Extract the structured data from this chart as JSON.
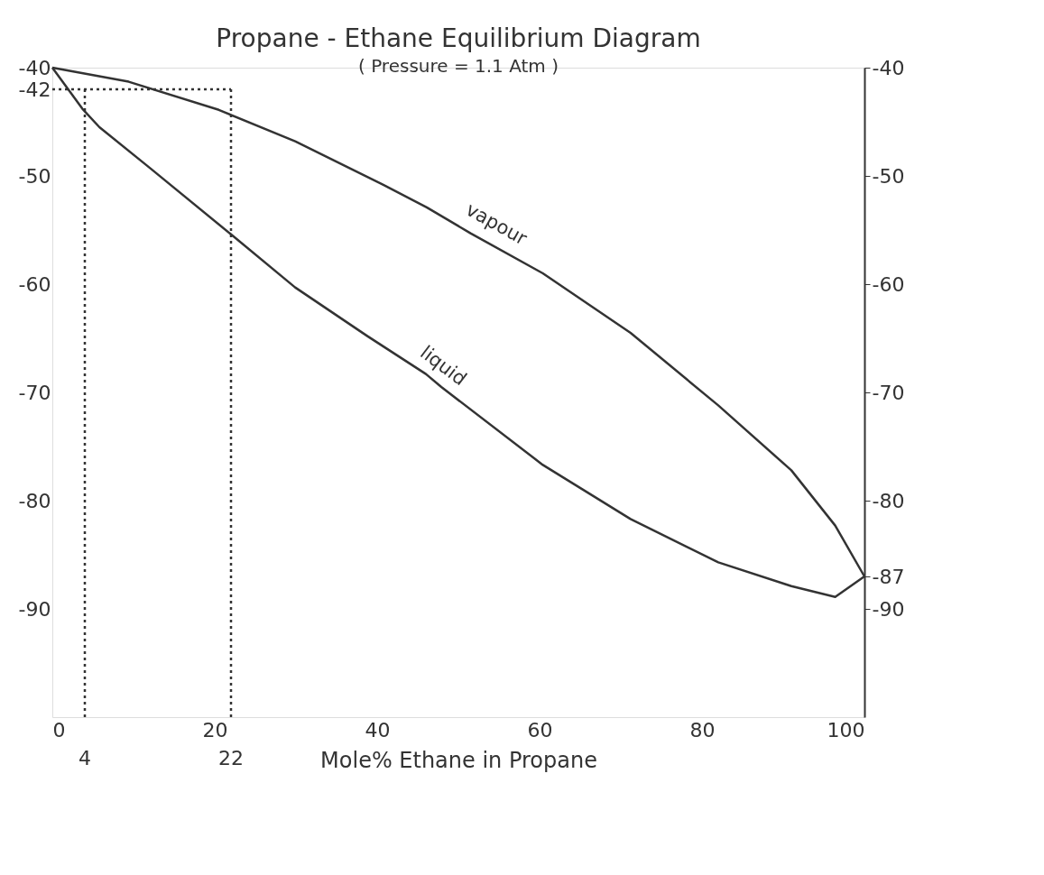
{
  "chart_data": {
    "type": "line",
    "title": "Propane - Ethane Equilibrium Diagram",
    "subtitle": "( Pressure = 1.1 Atm )",
    "xlabel": "Mole% Ethane in Propane",
    "xlim": [
      0,
      100
    ],
    "xticks": [
      0,
      20,
      40,
      60,
      80,
      100
    ],
    "ylim": [
      -100,
      -40
    ],
    "yticks": [
      -40,
      -42,
      -50,
      -60,
      -70,
      -80,
      -90
    ],
    "y2lim": [
      -100,
      -40
    ],
    "y2ticks": [
      -40,
      -50,
      -60,
      -70,
      -80,
      -87,
      -90
    ],
    "grid": false,
    "marker": "none",
    "line_style": "solid",
    "series": [
      {
        "name": "vapour",
        "color": "#333333",
        "x": [
          0,
          9.4,
          20.5,
          29.9,
          40.7,
          46.1,
          51.5,
          60.4,
          71.2,
          82,
          91,
          96.4,
          100
        ],
        "values": [
          -40,
          -41.3,
          -43.9,
          -46.8,
          -50.8,
          -52.9,
          -55.3,
          -59,
          -64.5,
          -71.2,
          -77.2,
          -82.3,
          -87
        ]
      },
      {
        "name": "liquid",
        "color": "#333333",
        "x": [
          0,
          3.7,
          5.8,
          11.9,
          22,
          29.9,
          38.8,
          46,
          47.9,
          60.4,
          71.2,
          82,
          91,
          96.4,
          100
        ],
        "values": [
          -40,
          -43.8,
          -45.5,
          -49.2,
          -55.4,
          -60.3,
          -64.8,
          -68.3,
          -69.5,
          -76.7,
          -81.7,
          -85.7,
          -87.9,
          -88.9,
          -87
        ]
      }
    ],
    "ref_lines": [
      {
        "axis": "x",
        "value": 4,
        "label": "4",
        "color": "#333333",
        "line_style": "dotted"
      },
      {
        "axis": "x",
        "value": 22,
        "label": "22",
        "color": "#333333",
        "line_style": "dotted"
      },
      {
        "axis": "y",
        "value": -42,
        "color": "#333333",
        "line_style": "dotted"
      }
    ]
  }
}
